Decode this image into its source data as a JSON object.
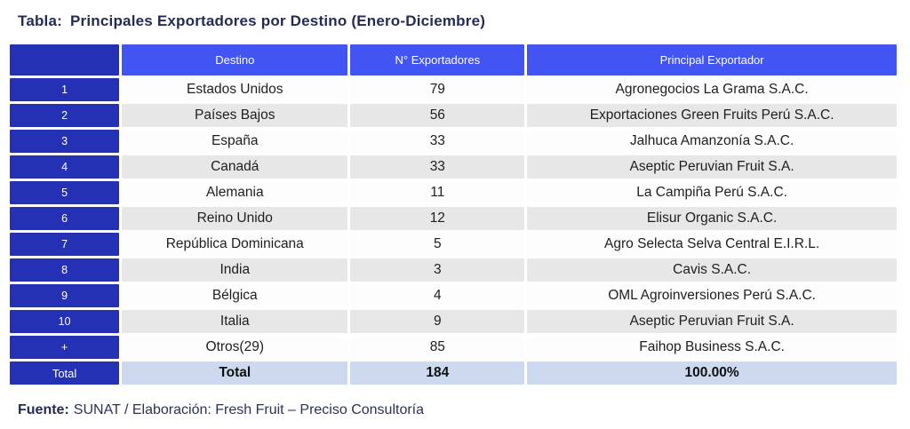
{
  "title": {
    "prefix": "Tabla:",
    "text": "Principales Exportadores por Destino (Enero-Diciembre)"
  },
  "chart_data": {
    "type": "table",
    "title": "Principales Exportadores por Destino (Enero-Diciembre)",
    "columns": {
      "rank": "",
      "destino": "Destino",
      "exportadores": "N° Exportadores",
      "principal": "Principal Exportador"
    },
    "rows": [
      {
        "rank": "1",
        "destino": "Estados Unidos",
        "exportadores": "79",
        "principal": "Agronegocios La Grama S.A.C."
      },
      {
        "rank": "2",
        "destino": "Países Bajos",
        "exportadores": "56",
        "principal": "Exportaciones Green Fruits Perú S.A.C."
      },
      {
        "rank": "3",
        "destino": "España",
        "exportadores": "33",
        "principal": "Jalhuca Amanzonía S.A.C."
      },
      {
        "rank": "4",
        "destino": "Canadá",
        "exportadores": "33",
        "principal": "Aseptic Peruvian Fruit S.A."
      },
      {
        "rank": "5",
        "destino": "Alemania",
        "exportadores": "11",
        "principal": "La Campiña Perú S.A.C."
      },
      {
        "rank": "6",
        "destino": "Reino Unido",
        "exportadores": "12",
        "principal": "Elisur Organic S.A.C."
      },
      {
        "rank": "7",
        "destino": "República Dominicana",
        "exportadores": "5",
        "principal": "Agro Selecta Selva Central E.I.R.L."
      },
      {
        "rank": "8",
        "destino": "India",
        "exportadores": "3",
        "principal": "Cavis S.A.C."
      },
      {
        "rank": "9",
        "destino": "Bélgica",
        "exportadores": "4",
        "principal": "OML Agroinversiones Perú S.A.C."
      },
      {
        "rank": "10",
        "destino": "Italia",
        "exportadores": "9",
        "principal": "Aseptic Peruvian Fruit S.A."
      },
      {
        "rank": "+",
        "destino": "Otros(29)",
        "exportadores": "85",
        "principal": "Faihop Business S.A.C."
      }
    ],
    "total": {
      "rank": "Total",
      "destino": "Total",
      "exportadores": "184",
      "principal": "100.00%"
    }
  },
  "footer": {
    "label": "Fuente:",
    "text": "SUNAT / Elaboración: Fresh Fruit – Preciso Consultoría"
  },
  "colors": {
    "title_navy": "#242c55",
    "header_blue": "#4254f1",
    "index_dark_blue": "#2531b5",
    "row_gray": "#e7e7e7",
    "row_white": "#fdfdfd",
    "total_light_blue": "#ccd9ee",
    "body_text": "#1e1e1e"
  }
}
